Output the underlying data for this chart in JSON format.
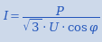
{
  "formula_text": "$I = \\dfrac{P}{\\sqrt{3}\\cdot U\\cdot\\cos\\varphi}$",
  "background_color": "#cdd9ea",
  "text_color": "#2255bb",
  "font_size": 9.5,
  "fig_width": 1.14,
  "fig_height": 0.47,
  "dpi": 100
}
